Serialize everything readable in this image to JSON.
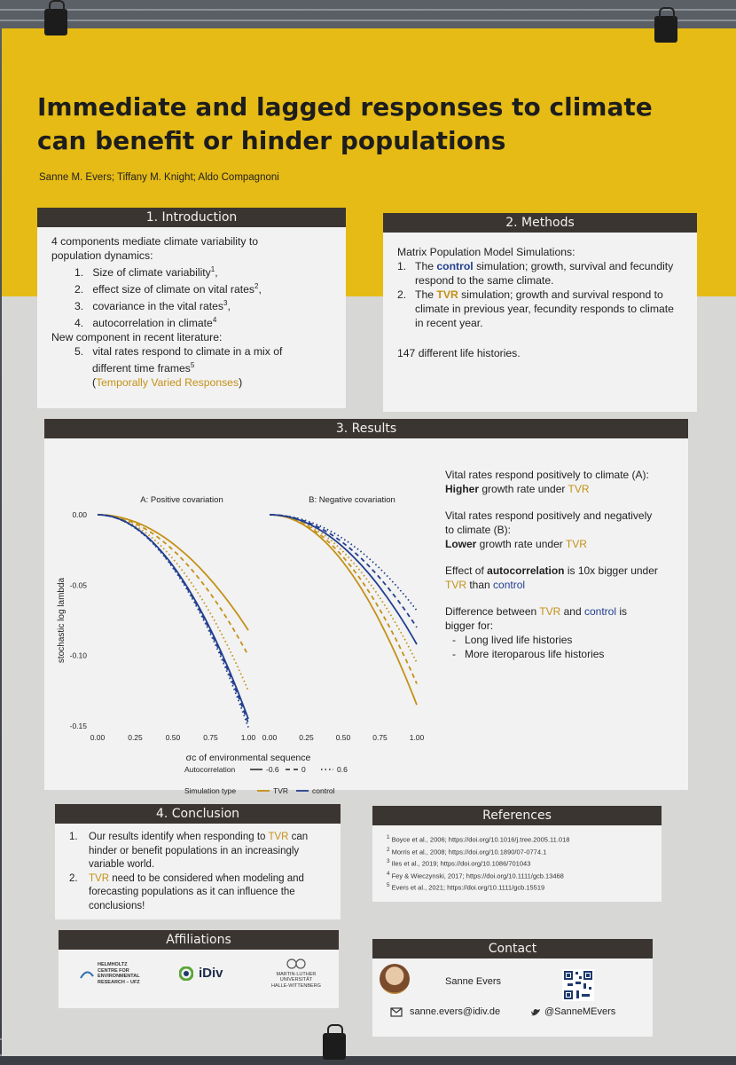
{
  "title_line1": "Immediate and lagged responses to climate",
  "title_line2": "can benefit or hinder populations",
  "authors": "Sanne M. Evers; Tiffany M. Knight; Aldo Compagnoni",
  "intro": {
    "heading": "1. Introduction",
    "lead1": "4 components mediate climate variability to",
    "lead2": "population dynamics:",
    "items": [
      "Size of climate variability",
      "effect size of climate on vital rates",
      "covariance in the vital rates",
      "autocorrelation in climate"
    ],
    "sups": [
      "1",
      "2",
      "3",
      "4"
    ],
    "nums": [
      "1.",
      "2.",
      "3.",
      "4."
    ],
    "new_component": "New component in recent literature:",
    "item5_num": "5.",
    "item5a": "vital rates respond to climate in a mix of",
    "item5b": "different time frames",
    "item5_sup": "5",
    "tvr_open": "(",
    "tvr_name": "Temporally Varied Responses",
    "tvr_close": ")"
  },
  "methods": {
    "heading": "2. Methods",
    "lead": "Matrix Population Model Simulations:",
    "n1": "1.",
    "m1_pre": "The ",
    "m1_word": "control",
    "m1_post": " simulation; growth, survival and fecundity respond to the same climate.",
    "n2": "2.",
    "m2_pre": "The ",
    "m2_word": "TVR",
    "m2_post": " simulation; growth and survival respond to climate  in previous year, fecundity responds to climate in recent year.",
    "histories": "147 different life histories."
  },
  "results": {
    "heading": "3. Results",
    "p1a": "Vital rates respond positively to climate (A):",
    "p1b_bold": "Higher",
    "p1b_rest": " growth rate under ",
    "p1b_tvr": "TVR",
    "p2a": "Vital rates respond positively and negatively",
    "p2b": "to climate (B):",
    "p2c_bold": "Lower",
    "p2c_rest": " growth rate under ",
    "p2c_tvr": "TVR",
    "p3a_pre": "Effect of ",
    "p3a_bold": "autocorrelation",
    "p3a_rest": " is 10x bigger under",
    "p3b_tvr": "TVR",
    "p3b_mid": " than ",
    "p3b_ctl": "control",
    "p4a_pre": "Difference between ",
    "p4a_tvr": "TVR",
    "p4a_mid": " and ",
    "p4a_ctl": "control",
    "p4a_post": " is",
    "p4b": "bigger for:",
    "dash": "-",
    "b1": "Long lived life histories",
    "b2": "More iteroparous life histories"
  },
  "conclusion": {
    "heading": "4. Conclusion",
    "n1": "1.",
    "c1_pre": "Our results identify when responding to ",
    "c1_tvr": "TVR",
    "c1_post": " can hinder or benefit populations in an increasingly variable world.",
    "n2": "2.",
    "c2_tvr": "TVR",
    "c2_post": " need to be considered when modeling and forecasting populations as it can influence the conclusions!"
  },
  "references": {
    "heading": "References",
    "items": [
      {
        "sup": "1",
        "text": "Boyce et al., 2006; https://doi.org/10.1016/j.tree.2005.11.018"
      },
      {
        "sup": "2",
        "text": "Morris et al., 2008; https://doi.org/10.1890/07-0774.1"
      },
      {
        "sup": "3",
        "text": "Iles et al., 2019; https://doi.org/10.1086/701043"
      },
      {
        "sup": "4",
        "text": "Fey & Wieczynski, 2017; https://doi.org/10.1111/gcb.13468"
      },
      {
        "sup": "5",
        "text": "Evers et al., 2021; https://doi.org/10.1111/gcb.15519"
      }
    ]
  },
  "affiliations": {
    "heading": "Affiliations",
    "helmholtz": [
      "HELMHOLTZ",
      "CENTRE FOR",
      "ENVIRONMENTAL",
      "RESEARCH – UFZ"
    ],
    "idiv": "iDiv",
    "mlu": [
      "MARTIN-LUTHER",
      "UNIVERSITÄT",
      "HALLE-WITTENBERG"
    ]
  },
  "contact": {
    "heading": "Contact",
    "name": "Sanne Evers",
    "email": "sanne.evers@idiv.de",
    "handle": "@SanneMEvers"
  },
  "colors": {
    "tvr": "#c49117",
    "control": "#23408f",
    "header": "#3b3531",
    "band": "#e6bb15"
  },
  "icons": [
    "envelope-icon",
    "twitter-bird-icon",
    "qr-code-icon",
    "avatar-photo"
  ],
  "chart_data": [
    {
      "type": "line",
      "title": "A: Positive covariation",
      "xlabel": "σc of environmental sequence",
      "ylabel": "stochastic log lambda",
      "xlim": [
        0,
        1
      ],
      "ylim": [
        -0.15,
        0.0
      ],
      "x_ticks": [
        "0.00",
        "0.25",
        "0.50",
        "0.75",
        "1.00"
      ],
      "y_ticks": [
        "0.00",
        "-0.05",
        "-0.10",
        "-0.15"
      ],
      "x": [
        0,
        0.25,
        0.5,
        0.75,
        1.0
      ],
      "series": [
        {
          "name": "TVR -0.6",
          "values": [
            0,
            -0.005,
            -0.02,
            -0.046,
            -0.082
          ]
        },
        {
          "name": "TVR 0",
          "values": [
            0,
            -0.006,
            -0.025,
            -0.056,
            -0.1
          ]
        },
        {
          "name": "TVR 0.6",
          "values": [
            0,
            -0.007,
            -0.03,
            -0.068,
            -0.125
          ]
        },
        {
          "name": "control -0.6",
          "values": [
            0,
            -0.009,
            -0.036,
            -0.081,
            -0.145
          ]
        },
        {
          "name": "control 0",
          "values": [
            0,
            -0.009,
            -0.037,
            -0.083,
            -0.148
          ]
        },
        {
          "name": "control 0.6",
          "values": [
            0,
            -0.009,
            -0.038,
            -0.085,
            -0.151
          ]
        }
      ]
    },
    {
      "type": "line",
      "title": "B: Negative covariation",
      "xlabel": "σc of environmental sequence",
      "xlim": [
        0,
        1
      ],
      "ylim": [
        -0.15,
        0.0
      ],
      "x_ticks": [
        "0.00",
        "0.25",
        "0.50",
        "0.75",
        "1.00"
      ],
      "x": [
        0,
        0.25,
        0.5,
        0.75,
        1.0
      ],
      "series": [
        {
          "name": "TVR -0.6",
          "values": [
            0,
            -0.009,
            -0.035,
            -0.077,
            -0.135
          ]
        },
        {
          "name": "TVR 0",
          "values": [
            0,
            -0.008,
            -0.031,
            -0.068,
            -0.12
          ]
        },
        {
          "name": "TVR 0.6",
          "values": [
            0,
            -0.007,
            -0.027,
            -0.06,
            -0.105
          ]
        },
        {
          "name": "control -0.6",
          "values": [
            0,
            -0.006,
            -0.024,
            -0.053,
            -0.092
          ]
        },
        {
          "name": "control 0",
          "values": [
            0,
            -0.005,
            -0.02,
            -0.045,
            -0.08
          ]
        },
        {
          "name": "control 0.6",
          "values": [
            0,
            -0.005,
            -0.017,
            -0.039,
            -0.068
          ]
        }
      ]
    }
  ],
  "legend": {
    "autocorr_label": "Autocorrelation",
    "autocorr_values": [
      "-0.6",
      "0",
      "0.6"
    ],
    "simtype_label": "Simulation type",
    "simtype_values": [
      "TVR",
      "control"
    ]
  }
}
